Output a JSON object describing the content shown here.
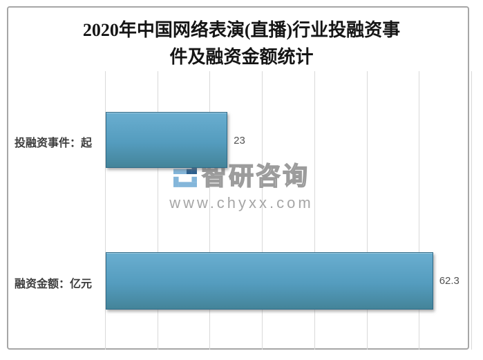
{
  "title": {
    "text": "2020年中国网络表演(直播)行业投融资事件及融资金额统计",
    "lines": [
      "2020年中国网络表演(直播)行业投融资事",
      "件及融资金额统计"
    ]
  },
  "watermark": {
    "brand": "智研咨询",
    "url": "www.chyxx.com"
  },
  "chart_data": {
    "type": "bar",
    "orientation": "horizontal",
    "title": "2020年中国网络表演(直播)行业投融资事件及融资金额统计",
    "categories": [
      "投融资事件：起",
      "融资金额：亿元"
    ],
    "values": [
      23,
      62.3
    ],
    "value_labels": [
      "23",
      "62.3"
    ],
    "xlim": [
      0,
      70
    ],
    "grid_interval": 10,
    "grid": true,
    "legend": false,
    "bar_color": "#5199bc",
    "bar_border_color": "#2e6a88"
  },
  "colors": {
    "background": "#ffffff",
    "frame_border": "#a6a6a6",
    "gridline": "#d9d9d9",
    "title_text": "#151515",
    "label_text": "#3d3d3d",
    "value_text": "#525252",
    "watermark_text": "#9c9c9c",
    "logo_dark": "#2d6190",
    "logo_light": "#84b6da"
  }
}
